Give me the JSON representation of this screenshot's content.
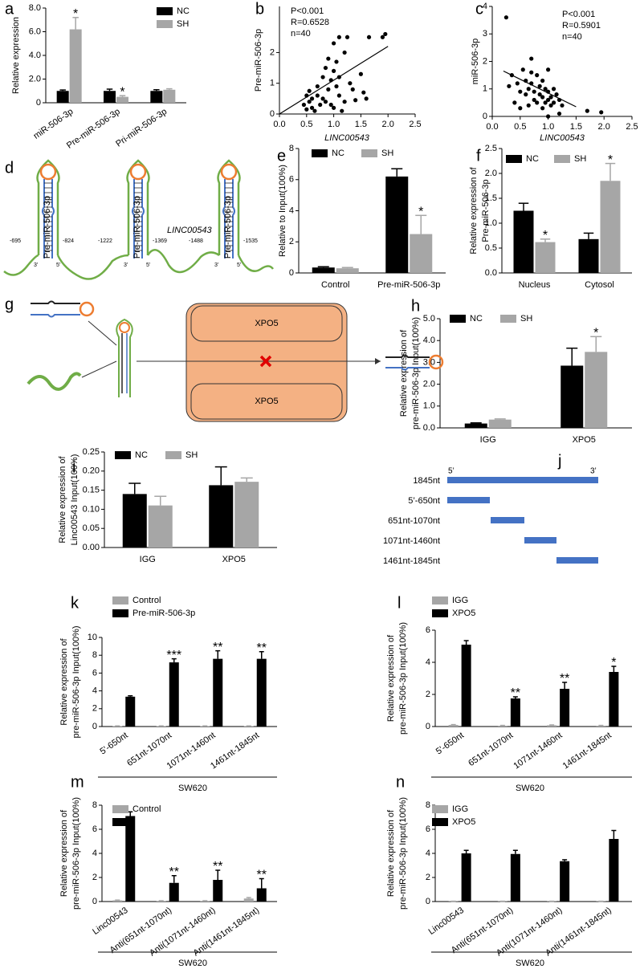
{
  "chart_data": [
    {
      "type": "bar",
      "label": "a",
      "ylabel": [
        "Relative expression"
      ],
      "categories": [
        "miR-506-3p",
        "Pre-miR-506-3p",
        "Pri-miR-506-3p"
      ],
      "series": [
        {
          "name": "NC",
          "color": "#000000",
          "values": [
            1.0,
            1.0,
            1.0
          ],
          "errors": [
            0.08,
            0.15,
            0.1
          ],
          "annotations": [
            null,
            null,
            null
          ]
        },
        {
          "name": "SH",
          "color": "#a6a6a6",
          "values": [
            6.2,
            0.5,
            1.1
          ],
          "errors": [
            1.0,
            0.1,
            0.08
          ],
          "annotations": [
            "*",
            "*",
            null
          ]
        }
      ],
      "ylim": [
        0,
        8
      ],
      "yticks": [
        0,
        {
          "value": 2,
          "label": "2.0"
        },
        {
          "value": 4,
          "label": "4.0"
        },
        {
          "value": 6,
          "label": "6.0"
        },
        {
          "value": 8,
          "label": "8.0"
        }
      ]
    },
    {
      "type": "scatter",
      "label": "b",
      "xlabel": "LINC00543",
      "ylabel": [
        "Pre-miR-506-3p"
      ],
      "annotations": [
        "P<0.001",
        "R=0.6528",
        "n=40"
      ],
      "x": [
        0.45,
        0.5,
        0.5,
        0.55,
        0.55,
        0.6,
        0.6,
        0.65,
        0.7,
        0.7,
        0.75,
        0.8,
        0.8,
        0.85,
        0.85,
        0.9,
        0.9,
        0.95,
        0.95,
        1.0,
        1.0,
        1.0,
        1.05,
        1.05,
        1.1,
        1.1,
        1.1,
        1.15,
        1.2,
        1.2,
        1.25,
        1.3,
        1.35,
        1.4,
        1.5,
        1.55,
        1.6,
        1.65,
        1.9,
        1.95
      ],
      "y": [
        0.3,
        0.6,
        0.15,
        0.75,
        0.4,
        0.5,
        0.2,
        0.1,
        0.6,
        0.9,
        0.3,
        1.2,
        0.5,
        0.4,
        1.5,
        1.8,
        0.8,
        0.3,
        1.1,
        2.3,
        1.4,
        0.2,
        1.7,
        0.9,
        2.5,
        0.6,
        1.2,
        0.1,
        2.0,
        0.4,
        2.5,
        1.0,
        0.8,
        0.45,
        1.3,
        0.7,
        0.5,
        2.5,
        2.5,
        2.6
      ],
      "fit": {
        "x": [
          0,
          2
        ],
        "y": [
          0,
          2.2
        ]
      },
      "xlim": [
        0,
        2.5
      ],
      "xticks": [
        {
          "value": 0,
          "label": "0.0"
        },
        0.5,
        {
          "value": 1,
          "label": "1.0"
        },
        1.5,
        {
          "value": 2,
          "label": "2.0"
        },
        2.5
      ],
      "ylim": [
        0,
        3.5
      ],
      "yticks": [
        0,
        1,
        2
      ]
    },
    {
      "type": "scatter",
      "label": "c",
      "xlabel": "LINC00543",
      "ylabel": [
        "miR-506-3p"
      ],
      "annotations": [
        "P<0.001",
        "R=0.5901",
        "n=40"
      ],
      "x": [
        0.25,
        0.3,
        0.35,
        0.4,
        0.45,
        0.5,
        0.5,
        0.55,
        0.6,
        0.6,
        0.65,
        0.65,
        0.7,
        0.7,
        0.75,
        0.75,
        0.8,
        0.8,
        0.85,
        0.85,
        0.9,
        0.9,
        0.9,
        0.95,
        0.95,
        1.0,
        1.0,
        1.0,
        1.05,
        1.05,
        1.1,
        1.1,
        1.15,
        1.2,
        1.2,
        1.25,
        1.0,
        0.7,
        1.7,
        1.95
      ],
      "y": [
        3.6,
        1.1,
        1.5,
        0.5,
        1.2,
        0.9,
        0.3,
        1.7,
        1.3,
        0.8,
        1.0,
        0.4,
        2.1,
        1.2,
        0.9,
        0.6,
        1.5,
        0.5,
        1.1,
        0.8,
        1.3,
        0.7,
        0.3,
        1.0,
        0.5,
        0.9,
        0.6,
        1.7,
        0.7,
        0.4,
        1.0,
        0.5,
        0.8,
        0.6,
        0.1,
        0.4,
        0.0,
        1.6,
        0.2,
        0.15
      ],
      "fit": {
        "x": [
          0.2,
          1.5
        ],
        "y": [
          1.65,
          0.35
        ]
      },
      "xlim": [
        0,
        2.5
      ],
      "xticks": [
        {
          "value": 0,
          "label": "0.0"
        },
        0.5,
        {
          "value": 1,
          "label": "1.0"
        },
        1.5,
        {
          "value": 2,
          "label": "2.0"
        },
        2.5
      ],
      "ylim": [
        0,
        4
      ],
      "yticks": [
        0,
        1,
        2,
        3,
        4
      ]
    },
    {
      "type": "bar",
      "label": "e",
      "ylabel": [
        "Relative  to Input(100%)"
      ],
      "categories": [
        "Control",
        "Pre-miR-506-3p"
      ],
      "series": [
        {
          "name": "NC",
          "color": "#000000",
          "values": [
            0.35,
            6.2
          ],
          "errors": [
            0.05,
            0.5
          ],
          "annotations": [
            null,
            null
          ]
        },
        {
          "name": "SH",
          "color": "#a6a6a6",
          "values": [
            0.3,
            2.5
          ],
          "errors": [
            0.05,
            1.2
          ],
          "annotations": [
            null,
            "*"
          ]
        }
      ],
      "ylim": [
        0,
        8
      ],
      "yticks": [
        0,
        2,
        4,
        6,
        8
      ]
    },
    {
      "type": "bar",
      "label": "f",
      "ylabel": [
        "Relative expression of",
        "Pre-miR-506-3p"
      ],
      "categories": [
        "Nucleus",
        "Cytosol"
      ],
      "series": [
        {
          "name": "NC",
          "color": "#000000",
          "values": [
            1.25,
            0.68
          ],
          "errors": [
            0.15,
            0.12
          ],
          "annotations": [
            null,
            null
          ]
        },
        {
          "name": "SH",
          "color": "#a6a6a6",
          "values": [
            0.62,
            1.85
          ],
          "errors": [
            0.06,
            0.35
          ],
          "annotations": [
            "*",
            "*"
          ]
        }
      ],
      "ylim": [
        0,
        2.5
      ],
      "yticks": [
        {
          "value": 0,
          "label": "0.0"
        },
        0.5,
        {
          "value": 1,
          "label": "1.0"
        },
        1.5,
        {
          "value": 2,
          "label": "2.0"
        },
        2.5
      ]
    },
    {
      "type": "bar",
      "label": "h",
      "ylabel": [
        "Relative expression of",
        "pre-miR-506-3p  Input(100%)"
      ],
      "categories": [
        "IGG",
        "XPO5"
      ],
      "series": [
        {
          "name": "NC",
          "color": "#000000",
          "values": [
            0.2,
            2.85
          ],
          "errors": [
            0.03,
            0.8
          ],
          "annotations": [
            null,
            null
          ]
        },
        {
          "name": "SH",
          "color": "#a6a6a6",
          "values": [
            0.38,
            3.48
          ],
          "errors": [
            0.03,
            0.7
          ],
          "annotations": [
            null,
            "*"
          ]
        }
      ],
      "ylim": [
        0,
        5
      ],
      "yticks": [
        {
          "value": 0,
          "label": "0.0"
        },
        {
          "value": 1,
          "label": "1.0"
        },
        {
          "value": 2,
          "label": "2.0"
        },
        {
          "value": 3,
          "label": "3.0"
        },
        {
          "value": 4,
          "label": "4.0"
        },
        {
          "value": 5,
          "label": "5.0"
        }
      ]
    },
    {
      "type": "bar",
      "label": "i",
      "ylabel": [
        "Relative expression of",
        "Linc00543  Input(100%)"
      ],
      "categories": [
        "IGG",
        "XPO5"
      ],
      "series": [
        {
          "name": "NC",
          "color": "#000000",
          "values": [
            0.14,
            0.163
          ],
          "errors": [
            0.028,
            0.048
          ],
          "annotations": [
            null,
            null
          ]
        },
        {
          "name": "SH",
          "color": "#a6a6a6",
          "values": [
            0.11,
            0.172
          ],
          "errors": [
            0.024,
            0.01
          ],
          "annotations": [
            null,
            null
          ]
        }
      ],
      "ylim": [
        0,
        0.25
      ],
      "yticks": [
        {
          "value": 0,
          "label": "0.00"
        },
        0.05,
        {
          "value": 0.1,
          "label": "0.10"
        },
        0.15,
        {
          "value": 0.2,
          "label": "0.20"
        },
        0.25
      ]
    },
    {
      "type": "bar",
      "label": "k",
      "xlabel": "SW620",
      "ylabel": [
        "Relative expression of",
        "pre-miR-506-3p  Input(100%)"
      ],
      "categories": [
        "5'-650nt",
        "651nt-1070nt",
        "1071nt-1460nt",
        "1461nt-1845nt"
      ],
      "series": [
        {
          "name": "Control",
          "color": "#a6a6a6",
          "values": [
            0.05,
            0.05,
            0.05,
            0.05
          ],
          "errors": [
            0.02,
            0.02,
            0.02,
            0.02
          ],
          "annotations": [
            null,
            null,
            null,
            null
          ]
        },
        {
          "name": "Pre-miR-506-3p",
          "color": "#000000",
          "values": [
            3.35,
            7.2,
            7.6,
            7.6
          ],
          "errors": [
            0.1,
            0.4,
            0.9,
            0.8
          ],
          "annotations": [
            null,
            "***",
            "**",
            "**"
          ]
        }
      ],
      "ylim": [
        0,
        10
      ],
      "yticks": [
        0,
        2,
        4,
        6,
        8,
        10
      ]
    },
    {
      "type": "bar",
      "label": "l",
      "xlabel": "SW620",
      "ylabel": [
        "Relative expression of",
        "pre-miR-506-3p  Input(100%)"
      ],
      "categories": [
        "5'-650nt",
        "651nt-1070nt",
        "1071nt-1460nt",
        "1461nt-1845nt"
      ],
      "series": [
        {
          "name": "IGG",
          "color": "#a6a6a6",
          "values": [
            0.1,
            0.05,
            0.08,
            0.05
          ],
          "errors": [
            0.02,
            0.02,
            0.02,
            0.02
          ],
          "annotations": [
            null,
            null,
            null,
            null
          ]
        },
        {
          "name": "XPO5",
          "color": "#000000",
          "values": [
            5.1,
            1.75,
            2.35,
            3.4
          ],
          "errors": [
            0.25,
            0.1,
            0.4,
            0.35
          ],
          "annotations": [
            null,
            "**",
            "**",
            "*"
          ]
        }
      ],
      "ylim": [
        0,
        6
      ],
      "yticks": [
        0,
        2,
        4,
        6
      ]
    },
    {
      "type": "bar",
      "label": "m",
      "xlabel": "SW620",
      "ylabel": [
        "Relative expression of",
        "pre-miR-506-3p  Input(100%)"
      ],
      "categories": [
        "Linc00543",
        "Anti(651nt-1070nt)",
        "Anti(1071nt-1460nt)",
        "Anti(1461nt-1845nt)"
      ],
      "series": [
        {
          "name": "Control",
          "color": "#a6a6a6",
          "values": [
            0.1,
            0.05,
            0.05,
            0.25
          ],
          "errors": [
            0.02,
            0.02,
            0.02,
            0.08
          ],
          "annotations": [
            null,
            null,
            null,
            null
          ]
        },
        {
          "color": "#000000",
          "values": [
            7.1,
            1.55,
            1.8,
            1.1
          ],
          "errors": [
            0.35,
            0.6,
            0.8,
            0.8
          ],
          "annotations": [
            null,
            "**",
            "**",
            "**"
          ]
        }
      ],
      "ylim": [
        0,
        8
      ],
      "yticks": [
        0,
        2,
        4,
        6,
        8
      ]
    },
    {
      "type": "bar",
      "label": "n",
      "xlabel": "SW620",
      "ylabel": [
        "Relative expression of",
        "pre-miR-506-3p  Input(100%)"
      ],
      "categories": [
        "Linc00543",
        "Anti(651nt-1070nt)",
        "Anti(1071nt-1460nt)",
        "Anti(1461nt-1845nt)"
      ],
      "series": [
        {
          "name": "IGG",
          "color": "#a6a6a6",
          "values": [
            0.02,
            0.02,
            0.02,
            0.02
          ],
          "errors": [
            0.01,
            0.01,
            0.01,
            0.01
          ],
          "annotations": [
            null,
            null,
            null,
            null
          ]
        },
        {
          "name": "XPO5",
          "color": "#000000",
          "values": [
            4.0,
            3.95,
            3.35,
            5.2
          ],
          "errors": [
            0.25,
            0.3,
            0.12,
            0.7
          ],
          "annotations": [
            null,
            null,
            null,
            null
          ]
        }
      ],
      "ylim": [
        0,
        8
      ],
      "yticks": [
        0,
        2,
        4,
        6,
        8
      ]
    }
  ],
  "diagrams": {
    "d": {
      "label": "d",
      "hairpins": [
        "Pre-miR-506-3p",
        "Pre-miR-506-3p",
        "Pre-miR-506-3p"
      ],
      "gene": "LINC00543",
      "positions": [
        "-695",
        "-824",
        "-1222",
        "-1369",
        "-1488",
        "-1535"
      ],
      "ends": [
        "5'",
        "3'"
      ]
    },
    "g": {
      "label": "g",
      "protein": [
        "XPO5",
        "XPO5"
      ]
    },
    "j": {
      "label": "j",
      "ends": [
        "5’",
        "3’"
      ],
      "segments": [
        "1845nt",
        "5’-650nt",
        "651nt-1070nt",
        "1071nt-1460nt",
        "1461nt-1845nt"
      ]
    }
  }
}
